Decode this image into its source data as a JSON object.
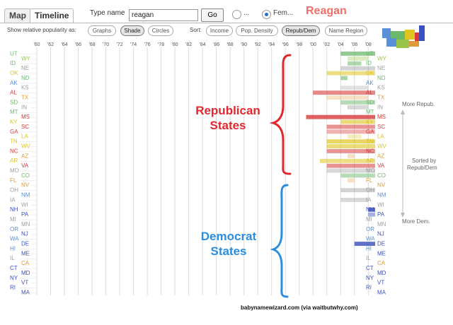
{
  "tabs": [
    {
      "label": "Map"
    },
    {
      "label": "Timeline"
    }
  ],
  "type_name_label": "Type name",
  "name_value": "reagan",
  "go_label": "Go",
  "gender_options": [
    {
      "label": "...",
      "selected": false
    },
    {
      "label": "Fem...",
      "selected": true
    }
  ],
  "current_name": "Reagan",
  "show_relative_label": "Show relative popularity as:",
  "display_modes": [
    {
      "label": "Graphs",
      "selected": false
    },
    {
      "label": "Shade",
      "selected": true
    },
    {
      "label": "Circles",
      "selected": false
    }
  ],
  "sort_label": "Sort:",
  "sort_options": [
    {
      "label": "Income",
      "selected": false
    },
    {
      "label": "Pop. Density",
      "selected": false
    },
    {
      "label": "Repub/Dem",
      "selected": true
    },
    {
      "label": "Name Region",
      "selected": false
    }
  ],
  "colors": {
    "accent": "#f06f6a",
    "republican": "#e0282e",
    "democrat": "#2a8ee0"
  },
  "annotations": {
    "republican_line1": "Republican",
    "republican_line2": "States",
    "democrat_line1": "Democrat",
    "democrat_line2": "States",
    "more_repub": "More Repub.",
    "sorted_by_line1": "Sorted by",
    "sorted_by_line2": "Repub/Dem",
    "more_dem": "More Dem."
  },
  "credit": "babynamewizard.com (via waitbutwhy.com)",
  "chart_data": {
    "type": "heatmap",
    "x_tick_labels": [
      "'60",
      "'62",
      "'64",
      "'66",
      "'68",
      "'70",
      "'72",
      "'74",
      "'76",
      "'78",
      "'80",
      "'82",
      "'84",
      "'86",
      "'88",
      "'90",
      "'92",
      "'94",
      "'96",
      "'98",
      "'00",
      "'02",
      "'04",
      "'06",
      "'08"
    ],
    "x_range": [
      1960,
      2009
    ],
    "states": [
      {
        "abbr": "UT",
        "color": "#6cb96c"
      },
      {
        "abbr": "WY",
        "color": "#9bc44b"
      },
      {
        "abbr": "ID",
        "color": "#6cb96c"
      },
      {
        "abbr": "NE",
        "color": "#9e9e9e"
      },
      {
        "abbr": "OK",
        "color": "#e0c420"
      },
      {
        "abbr": "ND",
        "color": "#6cb96c"
      },
      {
        "abbr": "AK",
        "color": "#5b8fd6"
      },
      {
        "abbr": "KS",
        "color": "#9e9e9e"
      },
      {
        "abbr": "AL",
        "color": "#d83a3a"
      },
      {
        "abbr": "TX",
        "color": "#e09a3a"
      },
      {
        "abbr": "SD",
        "color": "#6cb96c"
      },
      {
        "abbr": "IN",
        "color": "#9e9e9e"
      },
      {
        "abbr": "MT",
        "color": "#6cb96c"
      },
      {
        "abbr": "MS",
        "color": "#d83a3a"
      },
      {
        "abbr": "KY",
        "color": "#e0c420"
      },
      {
        "abbr": "SC",
        "color": "#d83a3a"
      },
      {
        "abbr": "GA",
        "color": "#d83a3a"
      },
      {
        "abbr": "LA",
        "color": "#e0c420"
      },
      {
        "abbr": "TN",
        "color": "#e0c420"
      },
      {
        "abbr": "WV",
        "color": "#e0c420"
      },
      {
        "abbr": "NC",
        "color": "#d83a3a"
      },
      {
        "abbr": "AZ",
        "color": "#e09a3a"
      },
      {
        "abbr": "AR",
        "color": "#e0c420"
      },
      {
        "abbr": "VA",
        "color": "#d83a3a"
      },
      {
        "abbr": "MO",
        "color": "#9e9e9e"
      },
      {
        "abbr": "CO",
        "color": "#6cb96c"
      },
      {
        "abbr": "FL",
        "color": "#e09a3a"
      },
      {
        "abbr": "NV",
        "color": "#e09a3a"
      },
      {
        "abbr": "OH",
        "color": "#9e9e9e"
      },
      {
        "abbr": "NM",
        "color": "#5b8fd6"
      },
      {
        "abbr": "IA",
        "color": "#9e9e9e"
      },
      {
        "abbr": "WI",
        "color": "#9e9e9e"
      },
      {
        "abbr": "NH",
        "color": "#3a4fc0"
      },
      {
        "abbr": "PA",
        "color": "#3a4fc0"
      },
      {
        "abbr": "MI",
        "color": "#9e9e9e"
      },
      {
        "abbr": "MN",
        "color": "#9e9e9e"
      },
      {
        "abbr": "OR",
        "color": "#5b8fd6"
      },
      {
        "abbr": "NJ",
        "color": "#3a4fc0"
      },
      {
        "abbr": "WA",
        "color": "#5b8fd6"
      },
      {
        "abbr": "DE",
        "color": "#3a4fc0"
      },
      {
        "abbr": "HI",
        "color": "#5b8fd6"
      },
      {
        "abbr": "ME",
        "color": "#3a4fc0"
      },
      {
        "abbr": "IL",
        "color": "#9e9e9e"
      },
      {
        "abbr": "CA",
        "color": "#e09a3a"
      },
      {
        "abbr": "CT",
        "color": "#3a4fc0"
      },
      {
        "abbr": "MD",
        "color": "#3a4fc0"
      },
      {
        "abbr": "NY",
        "color": "#3a4fc0"
      },
      {
        "abbr": "VT",
        "color": "#3a4fc0"
      },
      {
        "abbr": "RI",
        "color": "#3a4fc0"
      },
      {
        "abbr": "MA",
        "color": "#3a4fc0"
      }
    ],
    "cells": [
      {
        "state": "UT",
        "start": 2004,
        "end": 2009,
        "intensity": 0.75
      },
      {
        "state": "WY",
        "start": 2005,
        "end": 2008,
        "intensity": 0.35
      },
      {
        "state": "ID",
        "start": 2005,
        "end": 2007,
        "intensity": 0.55
      },
      {
        "state": "NE",
        "start": 2004,
        "end": 2009,
        "intensity": 0.45
      },
      {
        "state": "OK",
        "start": 2002,
        "end": 2009,
        "intensity": 0.55
      },
      {
        "state": "ND",
        "start": 2004,
        "end": 2005,
        "intensity": 0.6
      },
      {
        "state": "KS",
        "start": 2004,
        "end": 2008,
        "intensity": 0.3
      },
      {
        "state": "AL",
        "start": 2000,
        "end": 2009,
        "intensity": 0.6
      },
      {
        "state": "TX",
        "start": 2002,
        "end": 2008,
        "intensity": 0.3
      },
      {
        "state": "SD",
        "start": 2004,
        "end": 2009,
        "intensity": 0.5
      },
      {
        "state": "IN",
        "start": 2005,
        "end": 2008,
        "intensity": 0.4
      },
      {
        "state": "MS",
        "start": 1999,
        "end": 2009,
        "intensity": 0.8
      },
      {
        "state": "KY",
        "start": 2004,
        "end": 2009,
        "intensity": 0.6
      },
      {
        "state": "SC",
        "start": 2002,
        "end": 2009,
        "intensity": 0.55
      },
      {
        "state": "GA",
        "start": 2002,
        "end": 2009,
        "intensity": 0.4
      },
      {
        "state": "LA",
        "start": 2005,
        "end": 2007,
        "intensity": 0.3
      },
      {
        "state": "TN",
        "start": 2002,
        "end": 2009,
        "intensity": 0.7
      },
      {
        "state": "WV",
        "start": 2002,
        "end": 2009,
        "intensity": 0.6
      },
      {
        "state": "NC",
        "start": 2002,
        "end": 2009,
        "intensity": 0.55
      },
      {
        "state": "AZ",
        "start": 2005,
        "end": 2006,
        "intensity": 0.3
      },
      {
        "state": "AR",
        "start": 2001,
        "end": 2009,
        "intensity": 0.55
      },
      {
        "state": "VA",
        "start": 2002,
        "end": 2009,
        "intensity": 0.55
      },
      {
        "state": "MO",
        "start": 2002,
        "end": 2009,
        "intensity": 0.4
      },
      {
        "state": "CO",
        "start": 2004,
        "end": 2009,
        "intensity": 0.5
      },
      {
        "state": "FL",
        "start": 2005,
        "end": 2006,
        "intensity": 0.3
      },
      {
        "state": "OH",
        "start": 2004,
        "end": 2009,
        "intensity": 0.45
      },
      {
        "state": "IA",
        "start": 2004,
        "end": 2008,
        "intensity": 0.4
      },
      {
        "state": "NH",
        "start": 2008,
        "end": 2009,
        "intensity": 0.85
      },
      {
        "state": "PA",
        "start": 2008,
        "end": 2009,
        "intensity": 0.45
      },
      {
        "state": "DE",
        "start": 2006,
        "end": 2009,
        "intensity": 0.8
      }
    ]
  }
}
